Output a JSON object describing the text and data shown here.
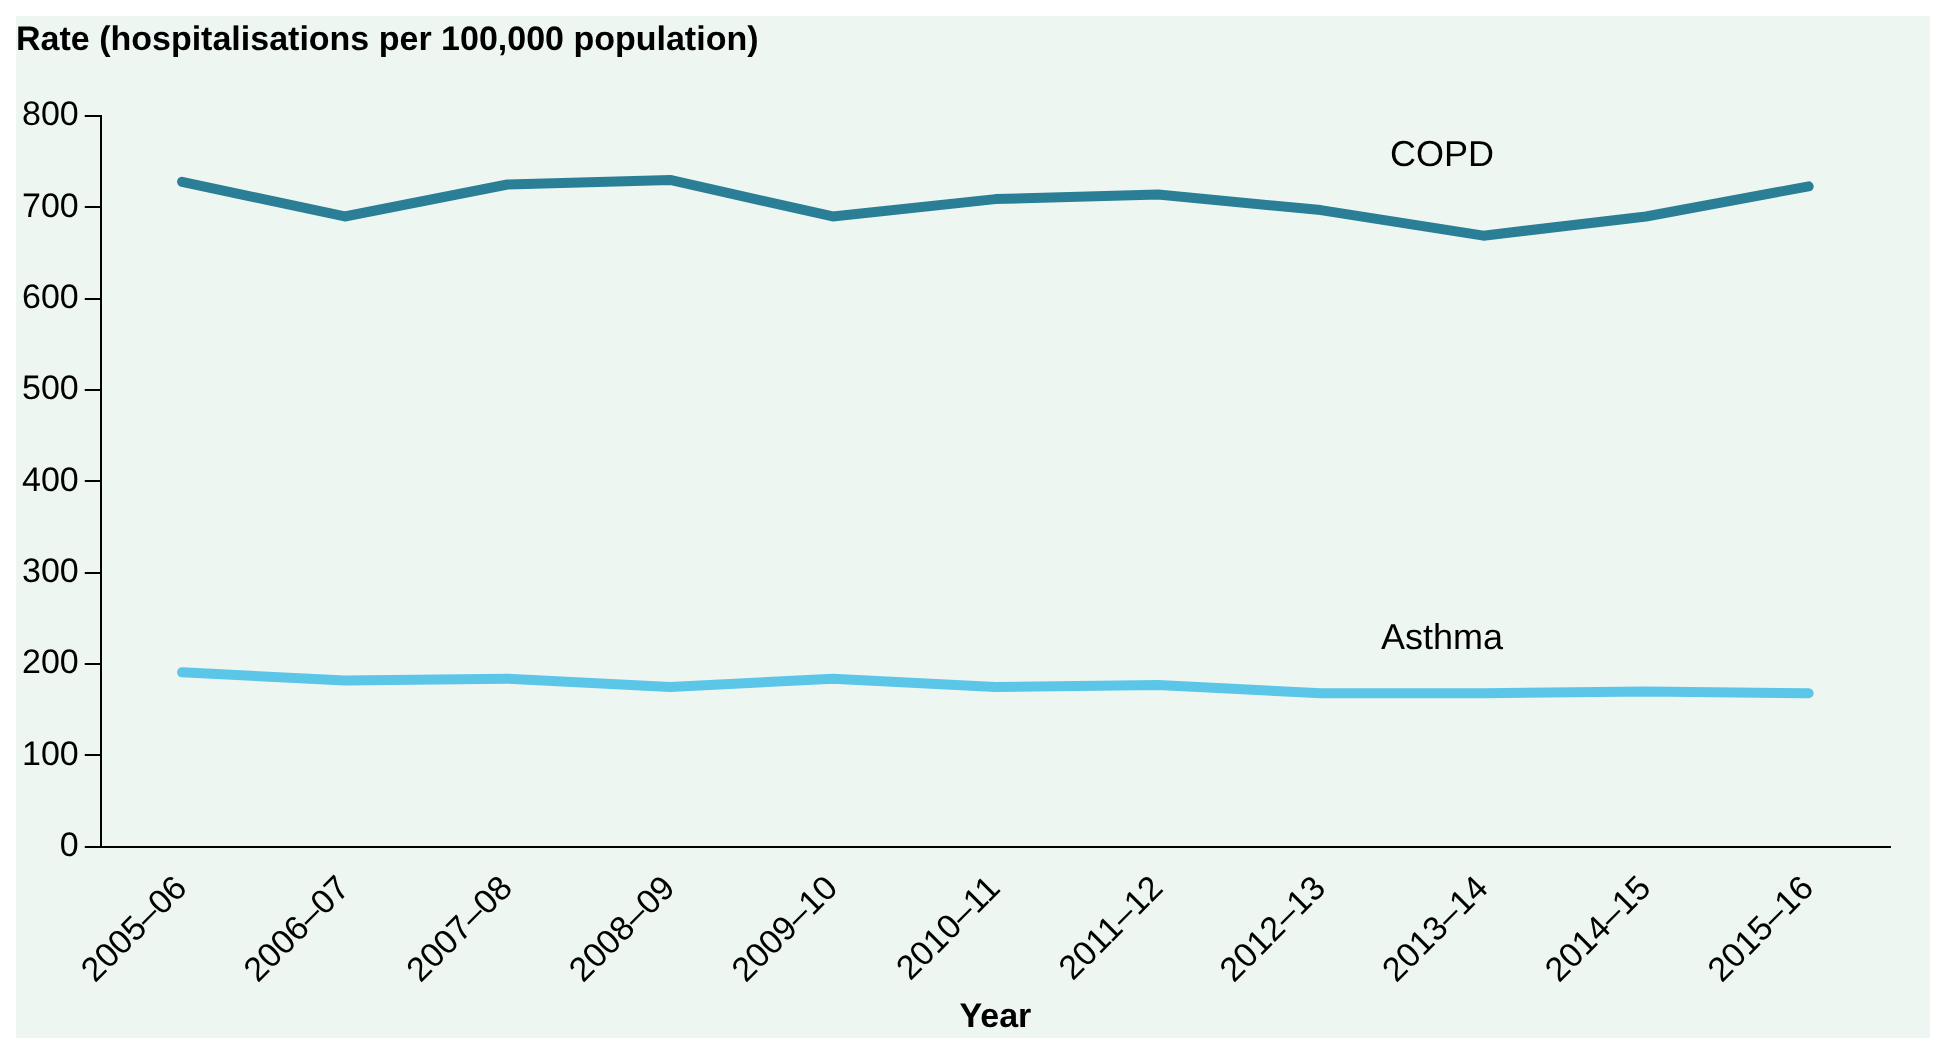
{
  "chart_data": {
    "type": "line",
    "ylabel": "Rate (hospitalisations per 100,000 population)",
    "xlabel": "Year",
    "categories": [
      "2005–06",
      "2006–07",
      "2007–08",
      "2008–09",
      "2009–10",
      "2010–11",
      "2011–12",
      "2012–13",
      "2013–14",
      "2014–15",
      "2015–16"
    ],
    "series": [
      {
        "name": "COPD",
        "color": "#2a7f96",
        "values": [
          728,
          690,
          725,
          730,
          690,
          709,
          714,
          697,
          669,
          690,
          723
        ]
      },
      {
        "name": "Asthma",
        "color": "#5bc6e8",
        "values": [
          191,
          182,
          184,
          175,
          184,
          175,
          177,
          168,
          168,
          170,
          168
        ]
      }
    ],
    "ylim": [
      0,
      800
    ],
    "yticks": [
      0,
      100,
      200,
      300,
      400,
      500,
      600,
      700,
      800
    ],
    "grid": false,
    "legend": false,
    "marker": "none",
    "line_style": "solid"
  }
}
